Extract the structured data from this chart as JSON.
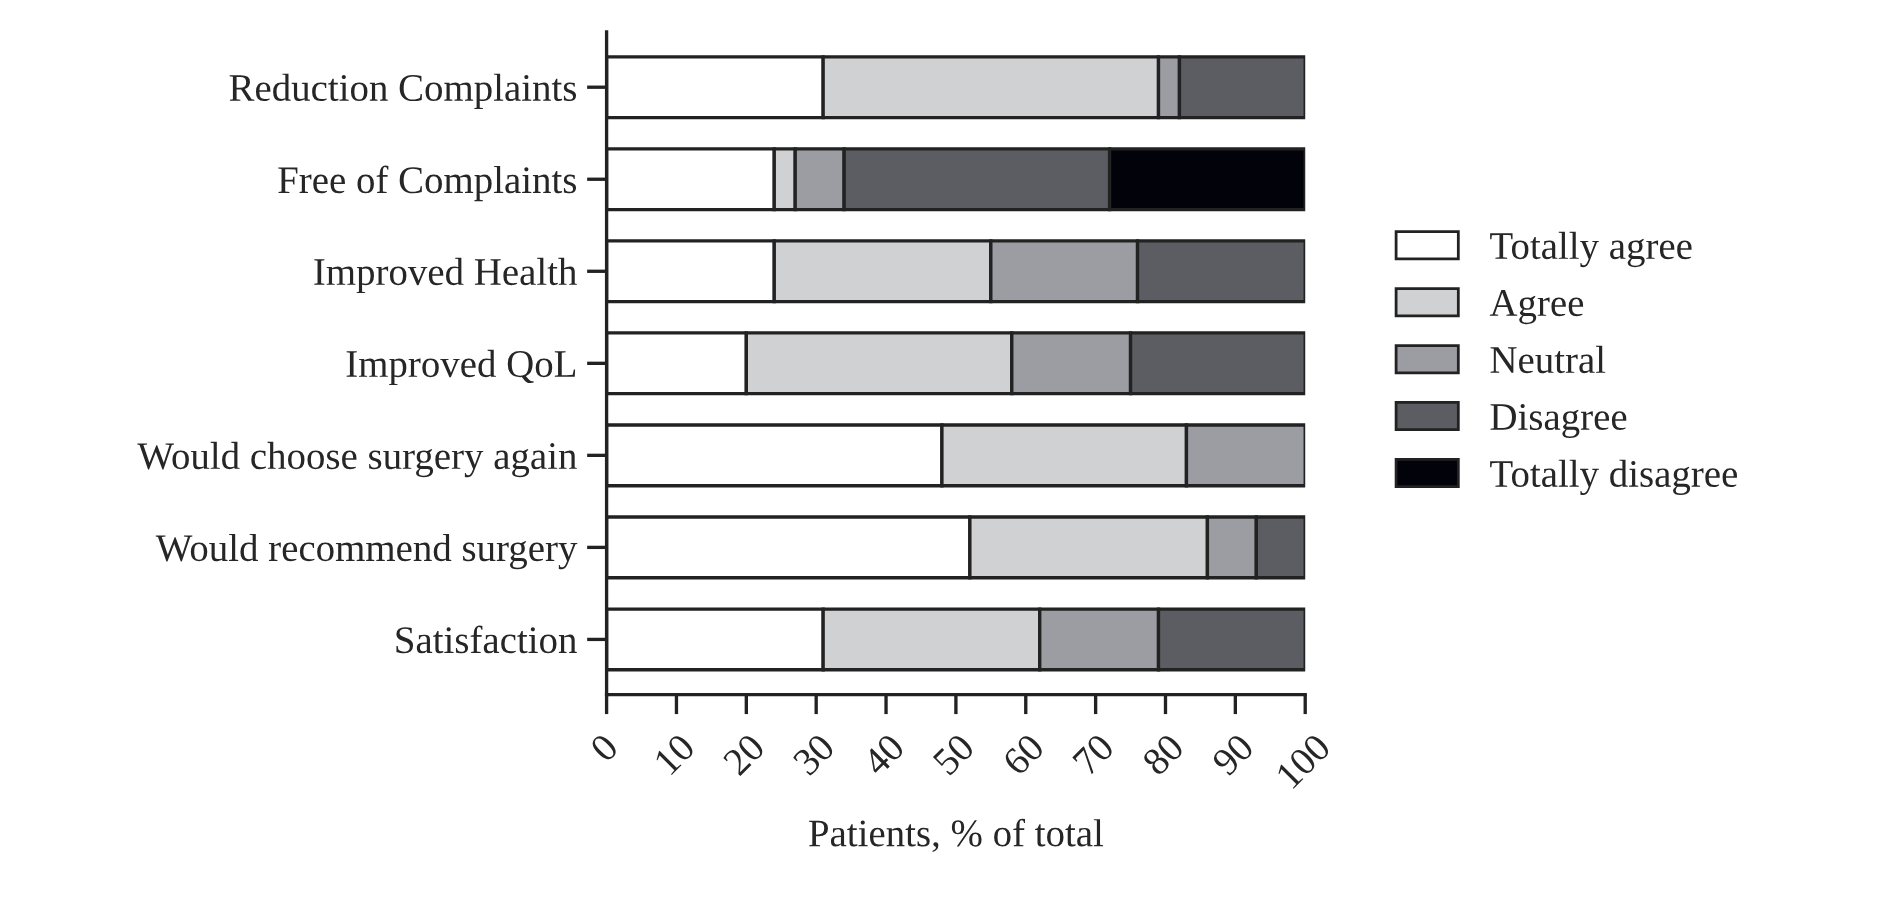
{
  "chart_data": {
    "type": "bar",
    "orientation": "horizontal",
    "stacked": true,
    "categories": [
      "Reduction Complaints",
      "Free of Complaints",
      "Improved Health",
      "Improved QoL",
      "Would choose surgery again",
      "Would recommend surgery",
      "Satisfaction"
    ],
    "series": [
      {
        "name": "Totally agree",
        "color": "#ffffff",
        "values": [
          31,
          24,
          24,
          20,
          48,
          52,
          31
        ]
      },
      {
        "name": "Agree",
        "color": "#d0d1d3",
        "values": [
          48,
          3,
          31,
          38,
          35,
          34,
          31
        ]
      },
      {
        "name": "Neutral",
        "color": "#9b9da3",
        "values": [
          3,
          7,
          21,
          17,
          17,
          7,
          17
        ]
      },
      {
        "name": "Disagree",
        "color": "#5c5d62",
        "values": [
          18,
          38,
          24,
          25,
          null,
          7,
          21
        ]
      },
      {
        "name": "Totally disagree",
        "color": "#02030a",
        "values": [
          null,
          28,
          null,
          null,
          null,
          null,
          null
        ]
      }
    ],
    "xlabel": "Patients, % of total",
    "xlim": [
      0,
      100
    ],
    "xticks": [
      0,
      10,
      20,
      30,
      40,
      50,
      60,
      70,
      80,
      90,
      100
    ],
    "grid": false,
    "legend": "right"
  }
}
